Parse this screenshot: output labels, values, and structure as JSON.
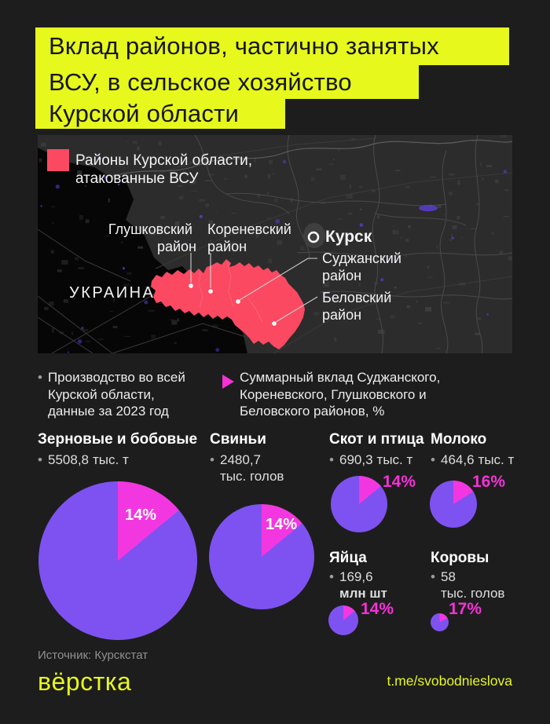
{
  "ui": {
    "bullet": "•"
  },
  "title": {
    "line1": "Вклад районов, частично занятых",
    "line2": "ВСУ, в сельское хозяйство",
    "line3": "Курской области"
  },
  "map": {
    "legend_line1": "Районы Курской области,",
    "legend_line2": "атакованные ВСУ",
    "country_label": "УКРАИНА",
    "city_label": "Курск",
    "districts": {
      "glushkovsky_line1": "Глушковский",
      "glushkovsky_line2": "район",
      "korenevsky_line1": "Кореневский",
      "korenevsky_line2": "район",
      "sudzhansky_line1": "Суджанский",
      "sudzhansky_line2": "район",
      "belovsky_line1": "Беловский",
      "belovsky_line2": "район"
    }
  },
  "notes": {
    "note1": "Производство во всей Курской области, данные за 2023 год",
    "note2": "Суммарный вклад Суджанского, Кореневского, Глушковского и Беловского районов, %"
  },
  "charts": [
    {
      "name": "Зерновые и бобовые",
      "amount": "5508,8",
      "unit": "тыс. т",
      "pct": "14%"
    },
    {
      "name": "Свиньи",
      "amount": "2480,7",
      "unit": "тыс. голов",
      "pct": "14%"
    },
    {
      "name": "Скот и птица",
      "amount": "690,3",
      "unit": "тыс. т",
      "pct": "14%"
    },
    {
      "name": "Молоко",
      "amount": "464,6",
      "unit": "тыс. т",
      "pct": "16%"
    },
    {
      "name": "Яйца",
      "amount": "169,6",
      "unit": "млн шт",
      "pct": "14%"
    },
    {
      "name": "Коровы",
      "amount": "58",
      "unit": "тыс. голов",
      "pct": "17%"
    }
  ],
  "source": "Источник: Курскстат",
  "footer": {
    "logo": "вёрстка",
    "link": "t.me/svobodnieslova"
  },
  "colors": {
    "bg": "#1d1d1d",
    "lime": "#e7f81d",
    "district_pink": "#fb4962",
    "pie_purple": "#7e52f0",
    "pie_magenta": "#f337e0",
    "label_magenta": "#f531d8",
    "map_bg": "#2c2c2c"
  },
  "chart_data": {
    "type": "pie",
    "title": "Вклад районов, частично занятых ВСУ, в сельское хозяйство Курской области",
    "note_total": "Производство во всей Курской области, данные за 2023 год",
    "note_share": "Суммарный вклад Суджанского, Кореневского, Глушковского и Беловского районов, %",
    "series": [
      {
        "name": "Зерновые и бобовые",
        "total_value": 5508.8,
        "total_unit": "тыс. т",
        "district_share_pct": 14
      },
      {
        "name": "Свиньи",
        "total_value": 2480.7,
        "total_unit": "тыс. голов",
        "district_share_pct": 14
      },
      {
        "name": "Скот и птица",
        "total_value": 690.3,
        "total_unit": "тыс. т",
        "district_share_pct": 14
      },
      {
        "name": "Молоко",
        "total_value": 464.6,
        "total_unit": "тыс. т",
        "district_share_pct": 16
      },
      {
        "name": "Яйца",
        "total_value": 169.6,
        "total_unit": "млн шт",
        "district_share_pct": 14
      },
      {
        "name": "Коровы",
        "total_value": 58,
        "total_unit": "тыс. голов",
        "district_share_pct": 17
      }
    ],
    "source": "Курскстат"
  }
}
